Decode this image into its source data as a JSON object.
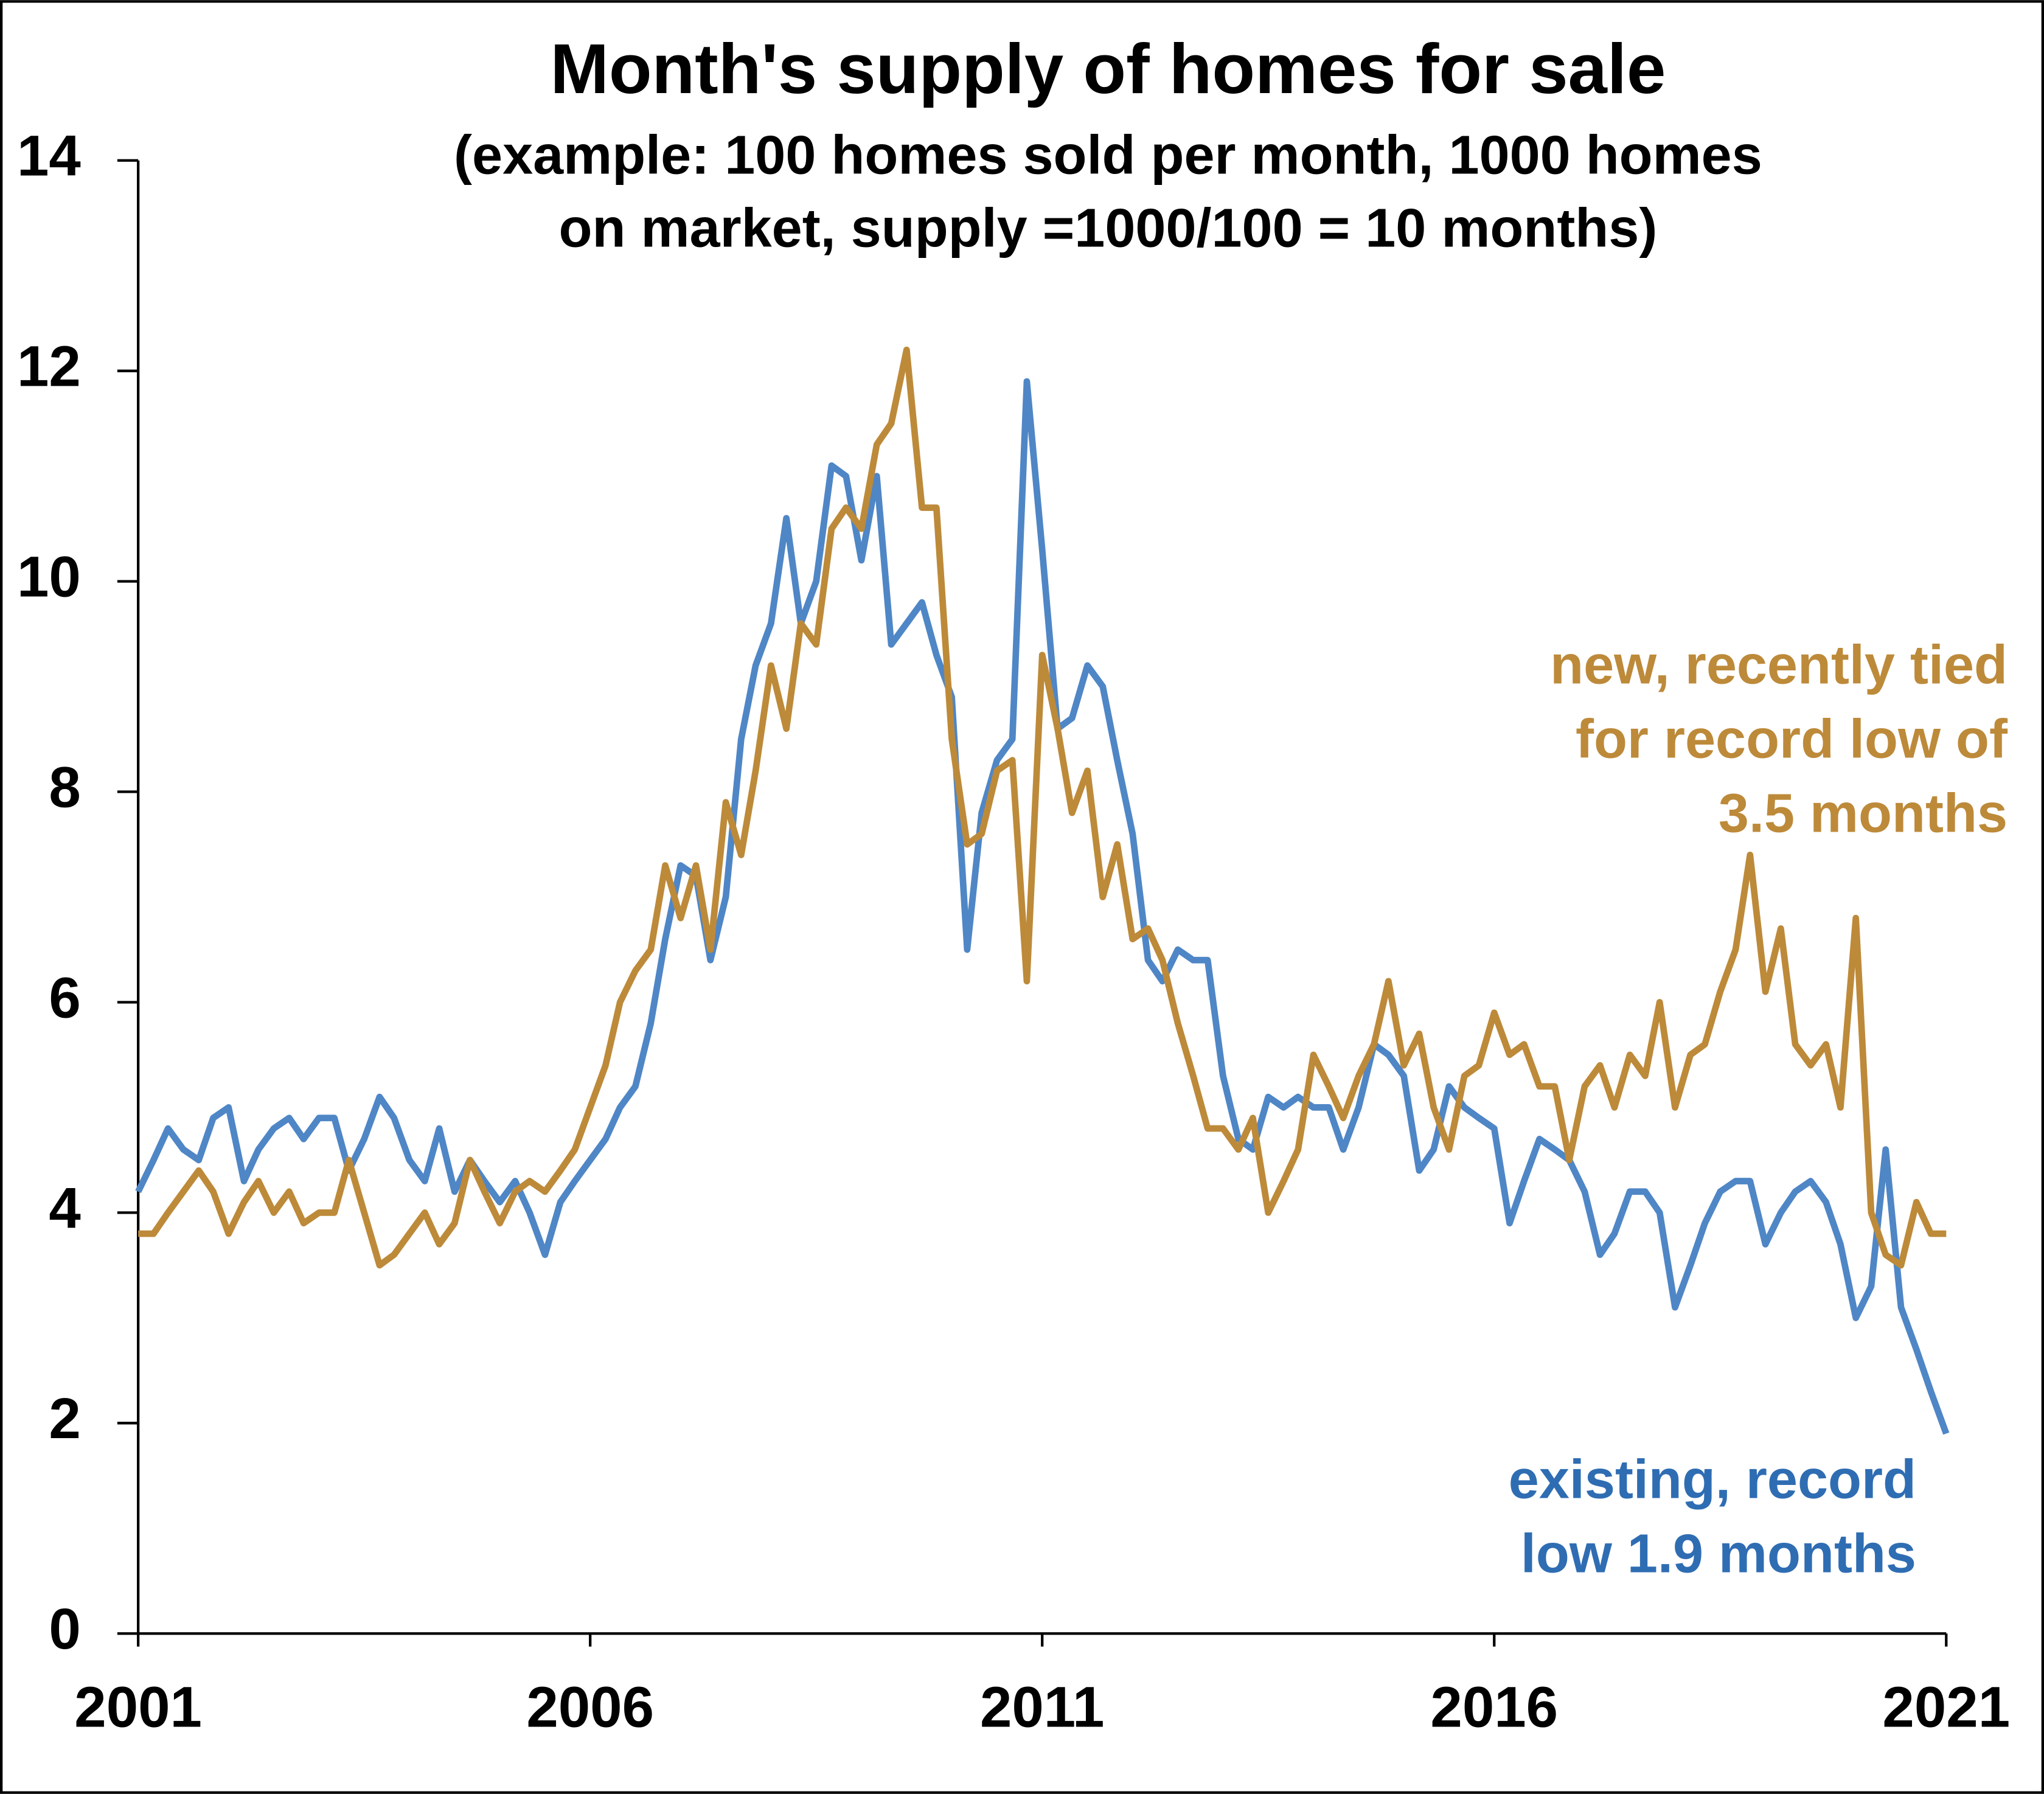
{
  "chart_data": {
    "type": "line",
    "title": "Month's supply of homes for sale",
    "subtitle": [
      "(example: 100 homes sold per month, 1000 homes",
      "on market, supply =1000/100 = 10 months)"
    ],
    "annotations": [
      {
        "lines": [
          "new, recently tied",
          "for record low of",
          "3.5 months"
        ],
        "color": "#bd8a3a"
      },
      {
        "lines": [
          "existing, record",
          "low 1.9 months"
        ],
        "color": "#2f6db3"
      }
    ],
    "xlim": [
      2001,
      2021
    ],
    "xticks": [
      2001,
      2006,
      2011,
      2016,
      2021
    ],
    "ylim": [
      0,
      14
    ],
    "yticks": [
      0,
      2,
      4,
      6,
      8,
      10,
      12,
      14
    ],
    "x": [
      2001,
      2001.17,
      2001.33,
      2001.5,
      2001.67,
      2001.83,
      2002,
      2002.17,
      2002.33,
      2002.5,
      2002.67,
      2002.83,
      2003,
      2003.17,
      2003.33,
      2003.5,
      2003.67,
      2003.83,
      2004,
      2004.17,
      2004.33,
      2004.5,
      2004.67,
      2004.83,
      2005,
      2005.17,
      2005.33,
      2005.5,
      2005.67,
      2005.83,
      2006,
      2006.17,
      2006.33,
      2006.5,
      2006.67,
      2006.83,
      2007,
      2007.17,
      2007.33,
      2007.5,
      2007.67,
      2007.83,
      2008,
      2008.17,
      2008.33,
      2008.5,
      2008.67,
      2008.83,
      2009,
      2009.17,
      2009.33,
      2009.5,
      2009.67,
      2009.83,
      2010,
      2010.17,
      2010.33,
      2010.5,
      2010.67,
      2010.83,
      2011,
      2011.17,
      2011.33,
      2011.5,
      2011.67,
      2011.83,
      2012,
      2012.17,
      2012.33,
      2012.5,
      2012.67,
      2012.83,
      2013,
      2013.17,
      2013.33,
      2013.5,
      2013.67,
      2013.83,
      2014,
      2014.17,
      2014.33,
      2014.5,
      2014.67,
      2014.83,
      2015,
      2015.17,
      2015.33,
      2015.5,
      2015.67,
      2015.83,
      2016,
      2016.17,
      2016.33,
      2016.5,
      2016.67,
      2016.83,
      2017,
      2017.17,
      2017.33,
      2017.5,
      2017.67,
      2017.83,
      2018,
      2018.17,
      2018.33,
      2018.5,
      2018.67,
      2018.83,
      2019,
      2019.17,
      2019.33,
      2019.5,
      2019.67,
      2019.83,
      2020,
      2020.17,
      2020.33,
      2020.5,
      2020.67,
      2020.83,
      2021
    ],
    "series": [
      {
        "name": "existing",
        "color": "#4f86c6",
        "values": [
          4.2,
          4.5,
          4.8,
          4.6,
          4.5,
          4.9,
          5.0,
          4.3,
          4.6,
          4.8,
          4.9,
          4.7,
          4.9,
          4.9,
          4.4,
          4.7,
          5.1,
          4.9,
          4.5,
          4.3,
          4.8,
          4.2,
          4.5,
          4.3,
          4.1,
          4.3,
          4.0,
          3.6,
          4.1,
          4.3,
          4.5,
          4.7,
          5.0,
          5.2,
          5.8,
          6.6,
          7.3,
          7.2,
          6.4,
          7.0,
          8.5,
          9.2,
          9.6,
          10.6,
          9.6,
          10.0,
          11.1,
          11.0,
          10.2,
          11.0,
          9.4,
          9.6,
          9.8,
          9.3,
          8.9,
          6.5,
          7.8,
          8.3,
          8.5,
          11.9,
          10.3,
          8.6,
          8.7,
          9.2,
          9.0,
          8.3,
          7.6,
          6.4,
          6.2,
          6.5,
          6.4,
          6.4,
          5.3,
          4.7,
          4.6,
          5.1,
          5.0,
          5.1,
          5.0,
          5.0,
          4.6,
          5.0,
          5.6,
          5.5,
          5.3,
          4.4,
          4.6,
          5.2,
          5.0,
          4.9,
          4.8,
          3.9,
          4.3,
          4.7,
          4.6,
          4.5,
          4.2,
          3.6,
          3.8,
          4.2,
          4.2,
          4.0,
          3.1,
          3.5,
          3.9,
          4.2,
          4.3,
          4.3,
          3.7,
          4.0,
          4.2,
          4.3,
          4.1,
          3.7,
          3.0,
          3.3,
          4.6,
          3.1,
          2.7,
          2.3,
          1.9
        ]
      },
      {
        "name": "new",
        "color": "#bd8a3a",
        "values": [
          3.8,
          3.8,
          4.0,
          4.2,
          4.4,
          4.2,
          3.8,
          4.1,
          4.3,
          4.0,
          4.2,
          3.9,
          4.0,
          4.0,
          4.5,
          4.0,
          3.5,
          3.6,
          3.8,
          4.0,
          3.7,
          3.9,
          4.5,
          4.2,
          3.9,
          4.2,
          4.3,
          4.2,
          4.4,
          4.6,
          5.0,
          5.4,
          6.0,
          6.3,
          6.5,
          7.3,
          6.8,
          7.3,
          6.5,
          7.9,
          7.4,
          8.2,
          9.2,
          8.6,
          9.6,
          9.4,
          10.5,
          10.7,
          10.5,
          11.3,
          11.5,
          12.2,
          10.7,
          10.7,
          8.5,
          7.5,
          7.6,
          8.2,
          8.3,
          6.2,
          9.3,
          8.6,
          7.8,
          8.2,
          7.0,
          7.5,
          6.6,
          6.7,
          6.4,
          5.8,
          5.3,
          4.8,
          4.8,
          4.6,
          4.9,
          4.0,
          4.3,
          4.6,
          5.5,
          5.2,
          4.9,
          5.3,
          5.6,
          6.2,
          5.4,
          5.7,
          5.0,
          4.6,
          5.3,
          5.4,
          5.9,
          5.5,
          5.6,
          5.2,
          5.2,
          4.5,
          5.2,
          5.4,
          5.0,
          5.5,
          5.3,
          6.0,
          5.0,
          5.5,
          5.6,
          6.1,
          6.5,
          7.4,
          6.1,
          6.7,
          5.6,
          5.4,
          5.6,
          5.0,
          6.8,
          4.0,
          3.6,
          3.5,
          4.1,
          3.8,
          3.8
        ]
      }
    ]
  }
}
